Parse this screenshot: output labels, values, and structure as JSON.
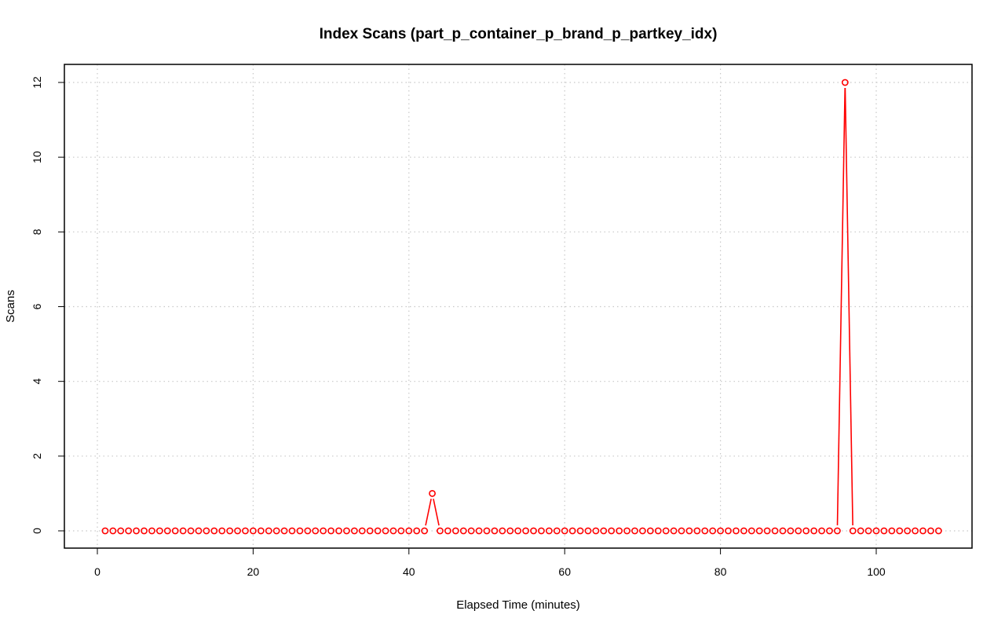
{
  "chart_data": {
    "type": "line",
    "title": "Index Scans (part_p_container_p_brand_p_partkey_idx)",
    "xlabel": "Elapsed Time (minutes)",
    "ylabel": "Scans",
    "xlim": [
      0,
      110
    ],
    "ylim": [
      0,
      12
    ],
    "x_ticks": [
      0,
      20,
      40,
      60,
      80,
      100
    ],
    "y_ticks": [
      0,
      2,
      4,
      6,
      8,
      10,
      12
    ],
    "x_tick_labels": [
      "0",
      "20",
      "40",
      "60",
      "80",
      "100"
    ],
    "y_tick_labels": [
      "0",
      "2",
      "4",
      "6",
      "8",
      "10",
      "12"
    ],
    "grid": true,
    "series": [
      {
        "color": "#ff0000",
        "marker": "open-circle",
        "x_start": 1,
        "x_step": 1,
        "values": [
          0,
          0,
          0,
          0,
          0,
          0,
          0,
          0,
          0,
          0,
          0,
          0,
          0,
          0,
          0,
          0,
          0,
          0,
          0,
          0,
          0,
          0,
          0,
          0,
          0,
          0,
          0,
          0,
          0,
          0,
          0,
          0,
          0,
          0,
          0,
          0,
          0,
          0,
          0,
          0,
          0,
          0,
          1,
          0,
          0,
          0,
          0,
          0,
          0,
          0,
          0,
          0,
          0,
          0,
          0,
          0,
          0,
          0,
          0,
          0,
          0,
          0,
          0,
          0,
          0,
          0,
          0,
          0,
          0,
          0,
          0,
          0,
          0,
          0,
          0,
          0,
          0,
          0,
          0,
          0,
          0,
          0,
          0,
          0,
          0,
          0,
          0,
          0,
          0,
          0,
          0,
          0,
          0,
          0,
          0,
          12,
          0,
          0,
          0,
          0,
          0,
          0,
          0,
          0,
          0,
          0,
          0,
          0
        ]
      }
    ]
  }
}
